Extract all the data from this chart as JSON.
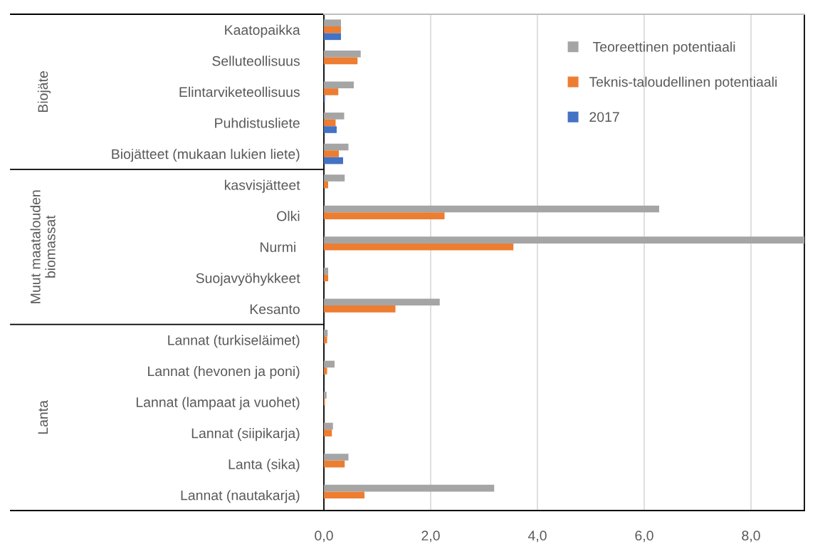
{
  "chart_data": {
    "type": "bar",
    "orientation": "horizontal",
    "categories": [
      "Kaatopaikka",
      "Selluteollisuus",
      "Elintarviketeollisuus",
      "Puhdistusliete",
      "Biojätteet (mukaan lukien liete)",
      "kasvisjätteet",
      "Olki",
      "Nurmi ",
      "Suojavyöhykkeet",
      "Kesanto",
      "Lannat (turkiseläimet)",
      "Lannat (hevonen ja poni)",
      "Lannat (lampaat ja vuohet)",
      "Lannat (siipikarja)",
      "Lanta (sika)",
      "Lannat (nautakarja)"
    ],
    "series": [
      {
        "name": " Teoreettinen potentiaali",
        "color": "#a5a5a5",
        "values": [
          0.32,
          0.69,
          0.56,
          0.38,
          0.46,
          0.39,
          6.28,
          9.0,
          0.08,
          2.17,
          0.07,
          0.2,
          0.05,
          0.17,
          0.46,
          3.19
        ]
      },
      {
        "name": "Teknis-taloudellinen potentiaali",
        "color": "#ed7d31",
        "values": [
          0.32,
          0.63,
          0.27,
          0.22,
          0.28,
          0.08,
          2.26,
          3.55,
          0.08,
          1.34,
          0.06,
          0.06,
          0.02,
          0.15,
          0.39,
          0.76
        ]
      },
      {
        "name": "2017",
        "color": "#4472c4",
        "values": [
          0.32,
          null,
          0.02,
          0.24,
          0.36,
          null,
          null,
          null,
          null,
          null,
          null,
          null,
          null,
          null,
          null,
          null
        ]
      }
    ],
    "annotations": [
      "Biojäte",
      "Muut maatalouden\nbiomassat",
      "Lanta"
    ],
    "xlim": [
      0,
      9.0
    ],
    "xticks": [
      {
        "value": 0,
        "label": "0,0"
      },
      {
        "value": 2,
        "label": "2,0"
      },
      {
        "value": 4,
        "label": "4,0"
      },
      {
        "value": 6,
        "label": "6,0"
      },
      {
        "value": 8,
        "label": "8,0"
      }
    ],
    "grid": "x",
    "legend": "top right"
  }
}
